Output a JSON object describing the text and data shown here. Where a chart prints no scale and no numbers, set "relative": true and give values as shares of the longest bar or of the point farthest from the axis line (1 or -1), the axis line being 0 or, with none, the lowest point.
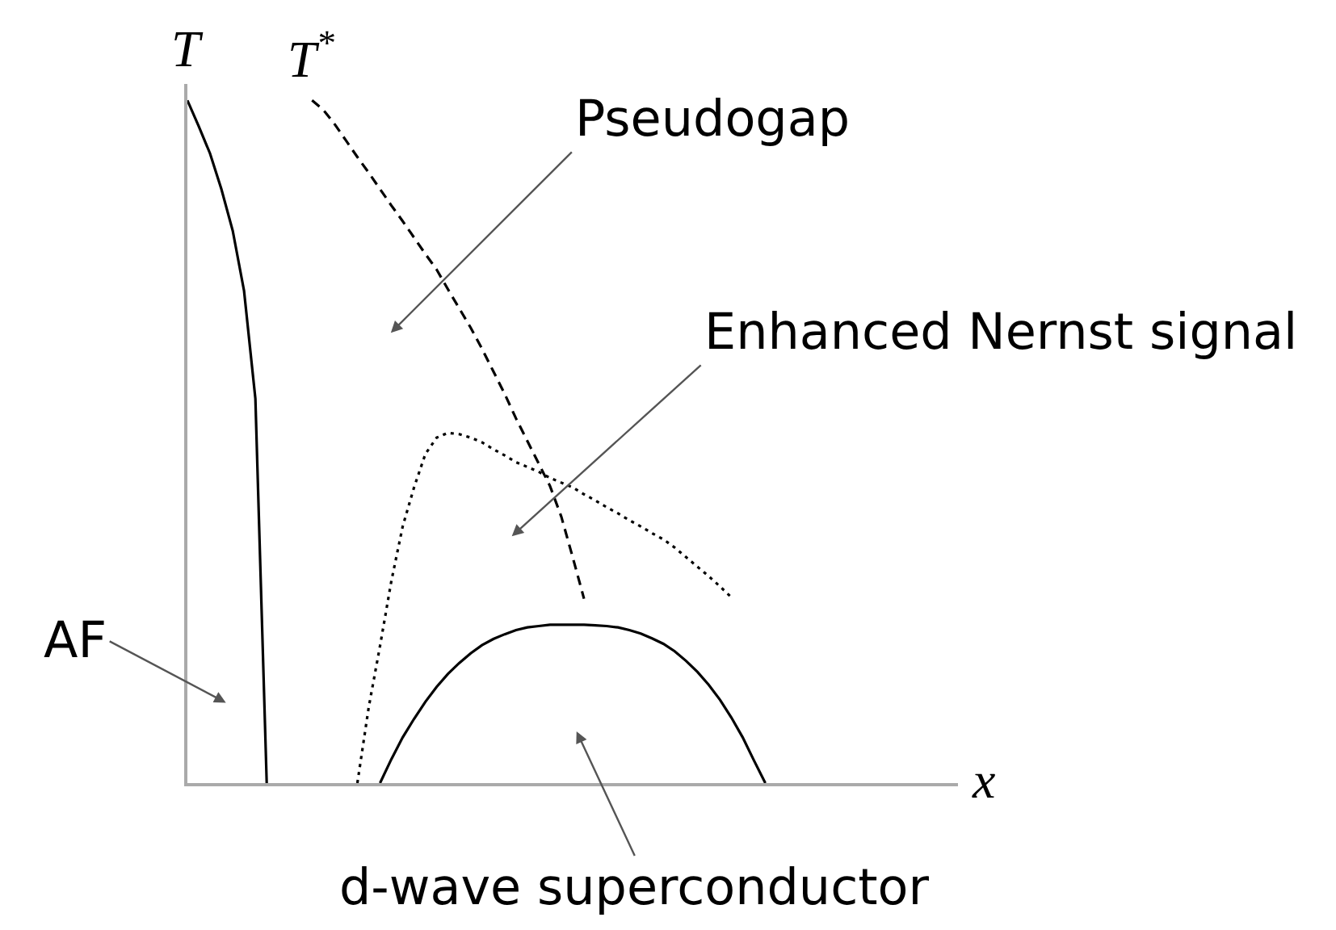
{
  "chart_data": {
    "type": "line",
    "relative": true,
    "xlabel": "x",
    "ylabel": "T",
    "legend": false,
    "marker": "none",
    "annotations": [
      "Pseudogap",
      "Enhanced Nernst signal",
      "AF",
      "d-wave superconductor"
    ],
    "categories": [
      null,
      null,
      null,
      null,
      null,
      null,
      null,
      null,
      null,
      null,
      null,
      null,
      null,
      null,
      null,
      null,
      null,
      null,
      null,
      null,
      null,
      null,
      null,
      null,
      null,
      null,
      null,
      null,
      null,
      null,
      null,
      null,
      null,
      null,
      null,
      null,
      null,
      null,
      null,
      null,
      null,
      null,
      null,
      null,
      null,
      null,
      null,
      null,
      null,
      null,
      null,
      null,
      null,
      null,
      null,
      null,
      null,
      null,
      null,
      null,
      null,
      null,
      null,
      null,
      null,
      null,
      null,
      null,
      null
    ],
    "series": [
      {
        "color": "#000000",
        "line_style": "solid",
        "values": [
          1.0,
          0.962,
          0.922,
          0.87,
          0.809,
          0.721,
          0.563,
          0,
          null,
          null,
          null,
          null,
          null,
          null,
          null,
          null,
          null,
          null,
          null,
          null,
          null,
          null,
          null,
          null,
          null,
          null,
          null,
          null,
          null,
          null,
          null,
          null,
          null,
          null,
          null,
          null,
          null,
          null,
          null,
          null,
          null,
          null,
          null,
          null,
          null,
          null,
          null,
          null,
          null,
          null,
          null,
          null,
          null,
          null,
          null,
          null,
          null,
          null,
          null,
          null,
          null,
          null,
          null,
          null,
          null,
          null,
          null,
          null,
          null
        ]
      },
      {
        "name": "T$^{*}$",
        "color": "#000000",
        "line_style": "dashed",
        "values": [
          null,
          null,
          null,
          null,
          null,
          null,
          null,
          null,
          null,
          null,
          null,
          1.0,
          0.986,
          0.965,
          0.941,
          0.917,
          0.894,
          0.87,
          0.846,
          0.823,
          0.799,
          0.775,
          0.752,
          0.723,
          0.695,
          0.667,
          0.636,
          0.603,
          0.57,
          0.534,
          0.501,
          0.468,
          0.435,
          0.39,
          0.331,
          0.27,
          null,
          null,
          null,
          null,
          null,
          null,
          null,
          null,
          null,
          null,
          null,
          null,
          null,
          null,
          null,
          null,
          null,
          null,
          null,
          null,
          null,
          null,
          null,
          null,
          null,
          null,
          null,
          null,
          null,
          null,
          null,
          null,
          null
        ]
      },
      {
        "color": "#000000",
        "line_style": "dotted",
        "values": [
          null,
          null,
          null,
          null,
          null,
          null,
          null,
          null,
          null,
          null,
          null,
          null,
          null,
          null,
          null,
          0,
          0.111,
          0.201,
          0.296,
          0.376,
          0.433,
          0.482,
          0.506,
          0.513,
          0.511,
          0.506,
          0.499,
          0.489,
          0.48,
          0.47,
          0.463,
          0.456,
          0.447,
          0.44,
          0.433,
          0.423,
          0.414,
          0.404,
          0.395,
          0.385,
          0.376,
          0.366,
          0.357,
          0.345,
          0.331,
          0.317,
          0.303,
          0.288,
          0.272,
          null,
          null,
          null,
          null,
          null,
          null,
          null,
          null,
          null,
          null,
          null,
          null,
          null,
          null,
          null,
          null,
          null,
          null,
          null,
          null
        ]
      },
      {
        "color": "#000000",
        "line_style": "solid",
        "values": [
          null,
          null,
          null,
          null,
          null,
          null,
          null,
          null,
          null,
          null,
          null,
          null,
          null,
          null,
          null,
          null,
          null,
          0,
          0.035,
          0.067,
          0.094,
          0.119,
          0.141,
          0.16,
          0.176,
          0.19,
          0.202,
          0.211,
          0.218,
          0.224,
          0.228,
          0.23,
          0.232,
          0.232,
          0.232,
          0.232,
          0.231,
          0.23,
          0.228,
          0.224,
          0.219,
          0.212,
          0.204,
          0.193,
          0.179,
          0.163,
          0.144,
          0.122,
          0.096,
          0.067,
          0.033,
          0,
          null,
          null,
          null,
          null,
          null,
          null,
          null,
          null,
          null,
          null,
          null,
          null,
          null,
          null,
          null,
          null,
          null
        ]
      }
    ]
  }
}
